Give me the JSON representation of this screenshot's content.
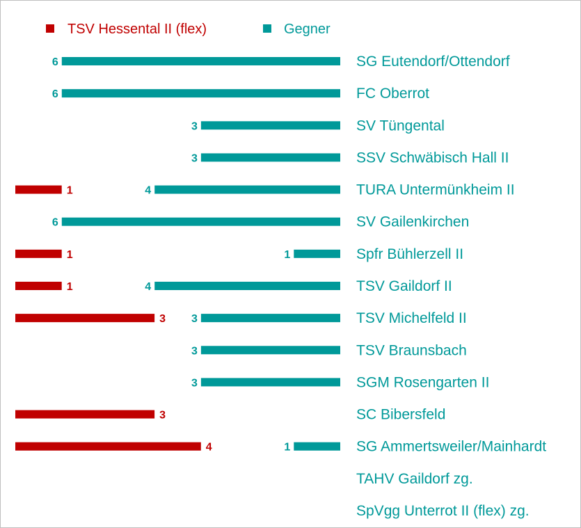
{
  "chart_data": {
    "type": "bar",
    "orientation": "horizontal-diverging",
    "title": "",
    "legend_placement": "top",
    "colors": {
      "home": "#c00000",
      "away": "#009999"
    },
    "series": [
      {
        "name": "TSV Hessental II (flex)",
        "values": [
          0,
          0,
          0,
          0,
          1,
          0,
          1,
          1,
          3,
          0,
          0,
          3,
          4,
          0,
          0
        ]
      },
      {
        "name": "Gegner",
        "values": [
          6,
          6,
          3,
          3,
          4,
          6,
          1,
          4,
          3,
          3,
          3,
          0,
          1,
          0,
          0
        ]
      }
    ],
    "categories": [
      "SG Eutendorf/Ottendorf",
      "FC Oberrot",
      "SV Tüngental",
      "SSV Schwäbisch Hall II",
      "TURA Untermünkheim II",
      "SV Gailenkirchen",
      "Spfr Bühlerzell II",
      "TSV Gaildorf II",
      "TSV Michelfeld II",
      "TSV Braunsbach",
      "SGM Rosengarten II",
      "SC Bibersfeld",
      "SG Ammertsweiler/Mainhardt",
      "TAHV Gaildorf zg.",
      "SpVgg Unterrot II (flex) zg."
    ]
  }
}
